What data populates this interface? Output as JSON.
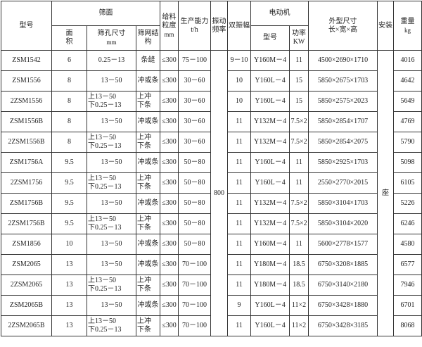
{
  "header": {
    "model": "型号",
    "screen": "筛面",
    "area": "面积",
    "aperture": "筛孔尺寸",
    "aperture_unit": "mm",
    "mesh": "筛网结构",
    "feed": "给料粒度",
    "feed_unit": "mm",
    "capacity": "生产能力 t/h",
    "frequency": "振动频率",
    "amplitude": "双振幅",
    "motor": "电动机",
    "motor_model": "型号",
    "power": "功率",
    "power_unit": "KW",
    "dimensions": "外型尺寸",
    "dimensions_sub": "长×宽×高",
    "install": "安装",
    "weight": "重量",
    "weight_unit": "kg"
  },
  "frequency_value": "800",
  "install_value": "座",
  "rows": [
    [
      "ZSM1542",
      "6",
      "0.25－13",
      "条缝",
      "≤300",
      "75－100",
      "9－10",
      "Y160M－4",
      "11",
      "4500×2690×1710",
      "4016"
    ],
    [
      "ZSM1556",
      "8",
      "13－50",
      "冲或条",
      "≤300",
      "30－60",
      "10",
      "Y160L－4",
      "15",
      "5850×2675×1703",
      "4642"
    ],
    [
      "2ZSM1556",
      "8",
      [
        "上13－50",
        "下0.25－13"
      ],
      [
        "上冲",
        "下条"
      ],
      "≤300",
      "30－60",
      "10",
      "Y160L－4",
      "15",
      "5850×2575×2023",
      "5649"
    ],
    [
      "ZSM1556B",
      "8",
      "13－50",
      "冲或条",
      "≤300",
      "30－60",
      "11",
      "Y132M－4",
      "7.5×2",
      "5850×2854×1707",
      "4769"
    ],
    [
      "2ZSM1556B",
      "8",
      [
        "上13－50",
        "下0.25－13"
      ],
      [
        "上冲",
        "下条"
      ],
      "≤300",
      "30－60",
      "11",
      "Y132M－4",
      "7.5×2",
      "5850×2854×2075",
      "5790"
    ],
    [
      "ZSM1756A",
      "9.5",
      "13－50",
      "冲或条",
      "≤300",
      "50－80",
      "11",
      "Y160L－4",
      "11",
      "5850×2925×1703",
      "5098"
    ],
    [
      "2ZSM1756",
      "9.5",
      [
        "上13－50",
        "下0.25－13"
      ],
      [
        "上冲",
        "下条"
      ],
      "≤300",
      "50－80",
      "11",
      "Y160L－4",
      "11",
      "2550×2770×2015",
      "6105"
    ],
    [
      "ZSM1756B",
      "9.5",
      "13－50",
      "冲或条",
      "≤300",
      "50－80",
      "11",
      "Y132M－4",
      "7.5×2",
      "5850×3104×1703",
      "5226"
    ],
    [
      "2ZSM1756B",
      "9.5",
      [
        "上13－50",
        "下0.25－13"
      ],
      [
        "上冲",
        "下条"
      ],
      "≤300",
      "50－80",
      "11",
      "Y132M－4",
      "7.5×2",
      "5850×3104×2020",
      "6246"
    ],
    [
      "ZSM1856",
      "10",
      "13－50",
      "冲或条",
      "≤300",
      "50－80",
      "11",
      "Y160M－4",
      "11",
      "5600×2778×1577",
      "4580"
    ],
    [
      "ZSM2065",
      "13",
      "13－50",
      "冲或条",
      "≤300",
      "70－100",
      "11",
      "Y180M－4",
      "18.5",
      "6750×3208×1885",
      "6577"
    ],
    [
      "2ZSM2065",
      "13",
      [
        "上13－50",
        "下0.25－13"
      ],
      [
        "上冲",
        "下条"
      ],
      "≤300",
      "70－100",
      "11",
      "Y180M－4",
      "18.5",
      "6750×3140×2180",
      "7946"
    ],
    [
      "ZSM2065B",
      "13",
      "13－50",
      "冲或条",
      "≤300",
      "70－100",
      "9",
      "Y160L－4",
      "11×2",
      "6750×3428×1880",
      "6701"
    ],
    [
      "2ZSM2065B",
      "13",
      [
        "上13－50",
        "下0.25－13"
      ],
      [
        "上冲",
        "下条"
      ],
      "≤300",
      "70－100",
      "11",
      "Y160L－4",
      "11×2",
      "6750×3428×3185",
      "8068"
    ]
  ]
}
